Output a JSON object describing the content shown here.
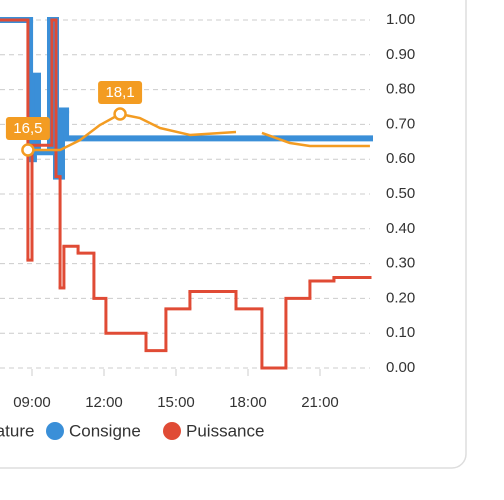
{
  "chart_data": {
    "type": "line",
    "xlim": [
      7.667,
      23.083
    ],
    "xticks": [
      {
        "value": 9,
        "label": "09:00"
      },
      {
        "value": 12,
        "label": "12:00"
      },
      {
        "value": 15,
        "label": "15:00"
      },
      {
        "value": 18,
        "label": "18:00"
      },
      {
        "value": 21,
        "label": "21:00"
      }
    ],
    "ylim": [
      0,
      1
    ],
    "yticks": [
      {
        "value": 0,
        "label": "0.00"
      },
      {
        "value": 0.1,
        "label": "0.10"
      },
      {
        "value": 0.2,
        "label": "0.20"
      },
      {
        "value": 0.3,
        "label": "0.30"
      },
      {
        "value": 0.4,
        "label": "0.40"
      },
      {
        "value": 0.5,
        "label": "0.50"
      },
      {
        "value": 0.6,
        "label": "0.60"
      },
      {
        "value": 0.7,
        "label": "0.70"
      },
      {
        "value": 0.8,
        "label": "0.80"
      },
      {
        "value": 0.9,
        "label": "0.90"
      },
      {
        "value": 1,
        "label": "1.00"
      }
    ],
    "y2lim": [
      6.81,
      22.28
    ],
    "grid": true,
    "series": [
      {
        "name": "Température",
        "color": "#f39c22",
        "axis": "y2",
        "step": false,
        "x": [
          8.83,
          10.17,
          11.0,
          11.83,
          12.67,
          13.5,
          14.33,
          15.58,
          17.5,
          18.0,
          18.58,
          19.75,
          20.58,
          23.08
        ],
        "values": [
          16.5,
          16.5,
          16.94,
          17.61,
          18.1,
          17.92,
          17.48,
          17.17,
          17.3,
          null,
          17.26,
          16.81,
          16.68,
          16.68
        ]
      },
      {
        "name": "Consigne",
        "color": "#3a8fd8",
        "step": true,
        "x": [
          7.67,
          8.92,
          9.08,
          9.25,
          9.75,
          10.0,
          10.25,
          10.42
        ],
        "values": [
          1.0,
          0.6,
          0.84,
          0.62,
          1.0,
          0.55,
          0.74,
          0.66
        ]
      },
      {
        "name": "Puissance",
        "color": "#e04b35",
        "step": true,
        "x": [
          7.67,
          8.83,
          9.0,
          9.83,
          10.0,
          10.17,
          10.33,
          10.92,
          11.58,
          12.08,
          13.75,
          14.58,
          15.58,
          17.5,
          18.58,
          19.58,
          20.58,
          21.58
        ],
        "values": [
          1.0,
          0.31,
          0.64,
          1.0,
          0.55,
          0.23,
          0.35,
          0.33,
          0.2,
          0.1,
          0.05,
          0.17,
          0.22,
          0.17,
          0.0,
          0.2,
          0.25,
          0.26
        ]
      }
    ],
    "annotations": [
      {
        "x": 8.83,
        "y": 16.5,
        "label": "16,5"
      },
      {
        "x": 12.67,
        "y": 18.1,
        "label": "18,1"
      }
    ]
  }
}
